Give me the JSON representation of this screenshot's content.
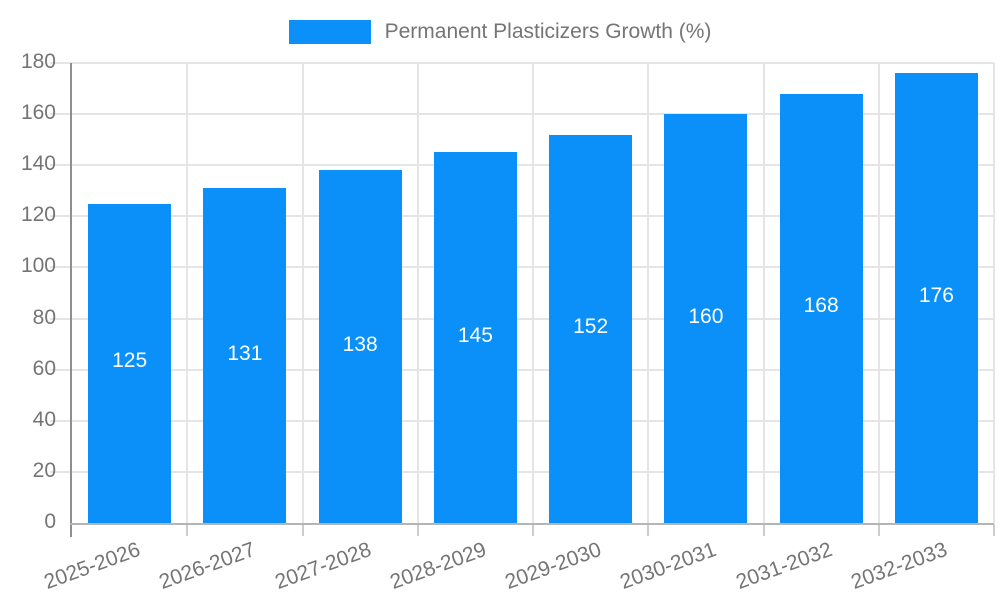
{
  "legend": {
    "label": "Permanent Plasticizers Growth (%)"
  },
  "chart_data": {
    "type": "bar",
    "title": "Permanent Plasticizers Growth (%)",
    "categories": [
      "2025-2026",
      "2026-2027",
      "2027-2028",
      "2028-2029",
      "2029-2030",
      "2030-2031",
      "2031-2032",
      "2032-2033"
    ],
    "values": [
      125,
      131,
      138,
      145,
      152,
      160,
      168,
      176
    ],
    "xlabel": "",
    "ylabel": "",
    "ylim": [
      0,
      180
    ],
    "ytick_step": 20,
    "grid": true,
    "legend_position": "top",
    "bar_color": "#0a90f8",
    "value_label_color": "#ffffff",
    "axis_text_color": "#757575",
    "gridline_color": "#e5e5e5",
    "axis_line_color": "#8f8f8f",
    "baseline_color": "#b5b5b5",
    "tick_color": "#cccccc"
  }
}
